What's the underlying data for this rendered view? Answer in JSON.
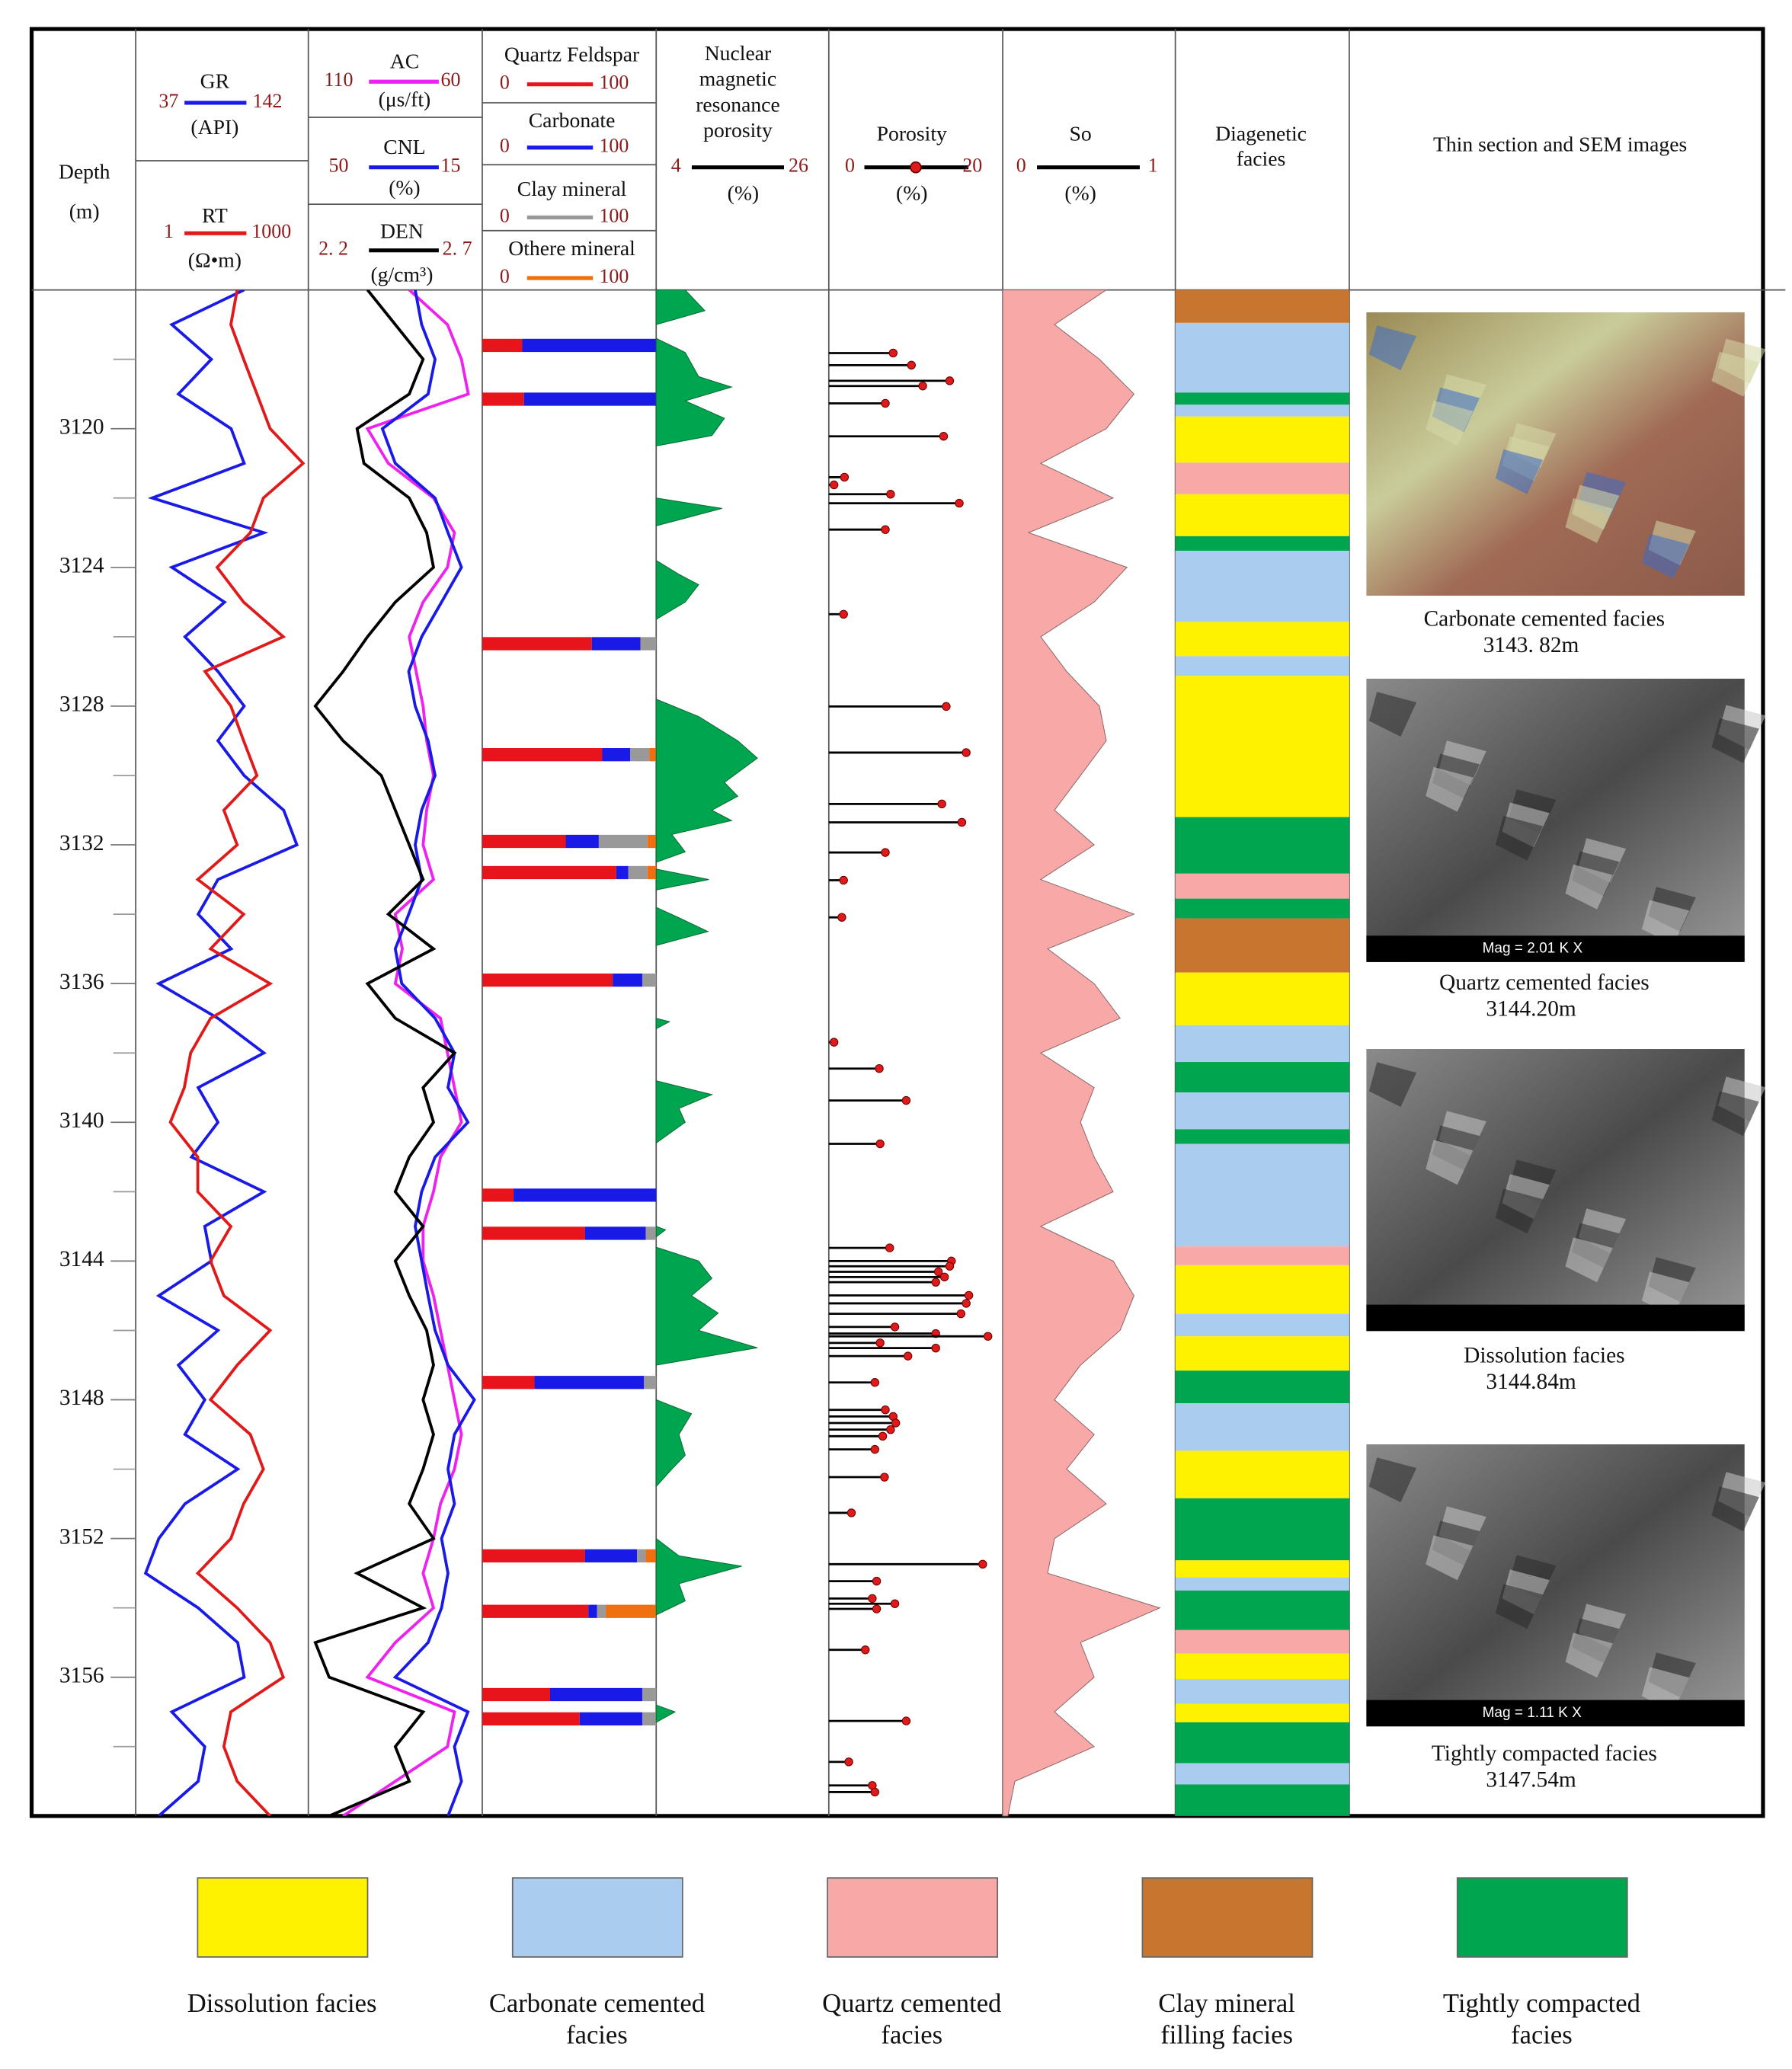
{
  "depth_track": {
    "title": "Depth",
    "unit": "(m)",
    "ylim": [
      3116,
      3160
    ],
    "yticks": [
      3120,
      3124,
      3128,
      3132,
      3136,
      3140,
      3144,
      3148,
      3152,
      3156
    ],
    "minor_yticks": [
      3118,
      3122,
      3126,
      3130,
      3134,
      3138,
      3142,
      3146,
      3150,
      3154,
      3158
    ]
  },
  "curve_depths": [
    3116,
    3117,
    3118,
    3119,
    3120,
    3121,
    3122,
    3123,
    3124,
    3125,
    3126,
    3127,
    3128,
    3129,
    3130,
    3131,
    3132,
    3133,
    3134,
    3135,
    3136,
    3137,
    3138,
    3139,
    3140,
    3141,
    3142,
    3143,
    3144,
    3145,
    3146,
    3147,
    3148,
    3149,
    3150,
    3151,
    3152,
    3153,
    3154,
    3155,
    3156,
    3157,
    3158,
    3159,
    3160
  ],
  "tracks": [
    {
      "curves": [
        {
          "name": "GR",
          "unit": "(API)",
          "color": "#1a1ae6",
          "lim": [
            37,
            142
          ],
          "values": [
            103,
            59,
            83,
            63,
            95,
            103,
            47,
            115,
            59,
            91,
            67,
            87,
            103,
            87,
            103,
            127,
            135,
            87,
            75,
            95,
            51,
            87,
            115,
            75,
            87,
            71,
            115,
            79,
            83,
            51,
            87,
            63,
            79,
            67,
            99,
            67,
            51,
            43,
            75,
            99,
            103,
            59,
            79,
            75,
            51
          ]
        },
        {
          "name": "RT",
          "unit": "(Ω•m)",
          "color": "#e01a1a",
          "lim": [
            1,
            1000
          ],
          "log": true,
          "values": [
            58,
            45,
            75,
            128,
            217,
            809,
            166,
            98,
            26,
            75,
            367,
            16,
            45,
            75,
            128,
            34,
            58,
            12,
            75,
            20,
            217,
            20,
            9,
            7,
            4,
            12,
            12,
            45,
            20,
            34,
            217,
            58,
            20,
            98,
            166,
            75,
            45,
            12,
            58,
            217,
            367,
            45,
            34,
            58,
            217
          ]
        }
      ]
    },
    {
      "curves": [
        {
          "name": "AC",
          "unit": "(μs/ft)",
          "color": "#ee22ee",
          "lim": [
            110,
            60
          ],
          "values": [
            81,
            70,
            66,
            64,
            93,
            87,
            74,
            68,
            70,
            77,
            81,
            79,
            77,
            76,
            74,
            76,
            77,
            74,
            85,
            83,
            85,
            72,
            70,
            68,
            66,
            72,
            74,
            77,
            77,
            74,
            72,
            70,
            68,
            66,
            68,
            72,
            74,
            77,
            74,
            85,
            93,
            68,
            70,
            85,
            100
          ]
        },
        {
          "name": "CNL",
          "unit": "(%)",
          "color": "#1a1ae6",
          "lim": [
            50,
            15
          ],
          "values": [
            28.5,
            27.2,
            24.5,
            25.9,
            35.1,
            32.5,
            24.5,
            21.9,
            19.2,
            23.2,
            27.2,
            29.8,
            28.5,
            25.9,
            24.5,
            27.2,
            28.5,
            27.2,
            29.8,
            32.5,
            31.2,
            24.5,
            20.6,
            21.9,
            17.9,
            24.5,
            27.2,
            28.5,
            27.2,
            25.9,
            24.5,
            21.9,
            16.6,
            20.6,
            21.9,
            20.6,
            23.2,
            21.9,
            23.2,
            25.9,
            32.5,
            17.9,
            20.6,
            19.2,
            21.9
          ]
        },
        {
          "name": "DEN",
          "unit": "(g/cm³)",
          "color": "#000000",
          "lim": [
            {
              "value": 2.2,
              "label": "2. 2"
            },
            {
              "value": 2.7,
              "label": "2. 7"
            }
          ],
          "values": [
            2.37,
            2.45,
            2.53,
            2.49,
            2.34,
            2.36,
            2.49,
            2.54,
            2.56,
            2.45,
            2.37,
            2.3,
            2.22,
            2.3,
            2.41,
            2.45,
            2.49,
            2.53,
            2.43,
            2.56,
            2.37,
            2.45,
            2.62,
            2.53,
            2.56,
            2.49,
            2.45,
            2.53,
            2.45,
            2.49,
            2.54,
            2.56,
            2.53,
            2.56,
            2.53,
            2.49,
            2.56,
            2.34,
            2.53,
            2.22,
            2.26,
            2.53,
            2.45,
            2.49,
            2.26
          ]
        }
      ]
    }
  ],
  "minerals": {
    "components": [
      {
        "name": "Quartz Feldspar",
        "color": "#e8141b",
        "lim": [
          0,
          100
        ]
      },
      {
        "name": "Carbonate",
        "color": "#1a1ae6",
        "lim": [
          0,
          100
        ]
      },
      {
        "name": "Clay mineral",
        "color": "#999999",
        "lim": [
          0,
          100
        ]
      },
      {
        "name": "Othere mineral",
        "color": "#f07010",
        "lim": [
          0,
          100
        ]
      }
    ],
    "bars": [
      {
        "depth": 3117.6,
        "values": [
          23,
          77,
          0,
          0
        ]
      },
      {
        "depth": 3119.15,
        "values": [
          24,
          76,
          0,
          0
        ]
      },
      {
        "depth": 3126.2,
        "values": [
          63,
          28,
          9,
          0
        ]
      },
      {
        "depth": 3129.4,
        "values": [
          69,
          16,
          11,
          4
        ]
      },
      {
        "depth": 3131.9,
        "values": [
          48,
          19,
          28,
          5
        ]
      },
      {
        "depth": 3132.8,
        "values": [
          77,
          7,
          11,
          5
        ]
      },
      {
        "depth": 3135.9,
        "values": [
          75,
          17,
          8,
          0
        ]
      },
      {
        "depth": 3142.1,
        "values": [
          18,
          82,
          0,
          0
        ]
      },
      {
        "depth": 3143.2,
        "values": [
          59,
          35,
          6,
          0
        ]
      },
      {
        "depth": 3147.5,
        "values": [
          30,
          63,
          7,
          0
        ]
      },
      {
        "depth": 3152.5,
        "values": [
          59,
          30,
          5,
          6
        ]
      },
      {
        "depth": 3154.1,
        "values": [
          61,
          5,
          5,
          29
        ]
      },
      {
        "depth": 3156.5,
        "values": [
          39,
          53,
          8,
          0
        ]
      },
      {
        "depth": 3157.2,
        "values": [
          56,
          36,
          8,
          0
        ]
      }
    ]
  },
  "nmr": {
    "title": [
      "Nuclear",
      "magnetic",
      "resonance",
      "porosity"
    ],
    "unit": "(%)",
    "lim": [
      4,
      26
    ],
    "color": "#00a54f",
    "depths": [
      3116.0,
      3116.6,
      3117.0,
      null,
      3117.4,
      3117.8,
      3118.5,
      3118.8,
      3119.2,
      3119.7,
      3120.2,
      3120.5,
      null,
      3122.0,
      3122.3,
      3122.8,
      null,
      3123.8,
      3124.2,
      3124.5,
      3125.0,
      3125.5,
      null,
      3127.8,
      3128.3,
      3129.0,
      3129.5,
      3130.2,
      3130.6,
      3131.0,
      3131.3,
      3131.7,
      3132.2,
      3132.5,
      null,
      3132.7,
      3133.0,
      3133.3,
      null,
      3133.8,
      3134.1,
      3134.5,
      3134.9,
      null,
      3137.0,
      3137.1,
      3137.3,
      null,
      3138.8,
      3139.2,
      3139.6,
      3140.0,
      3140.6,
      null,
      3143.0,
      3143.1,
      3143.3,
      null,
      3143.6,
      3144.0,
      3144.5,
      3145.0,
      3145.5,
      3146.0,
      3146.5,
      3147.0,
      null,
      3148.0,
      3148.4,
      3149.0,
      3149.6,
      3150.0,
      3150.5,
      null,
      3152.0,
      3152.5,
      3152.8,
      3153.3,
      3153.8,
      3154.2,
      null,
      3156.8,
      3157.0,
      3157.3
    ],
    "values": [
      7.7,
      10.2,
      4,
      null,
      4,
      7.7,
      9.4,
      13.6,
      7.7,
      12.7,
      11.1,
      4,
      null,
      4,
      12.4,
      4,
      null,
      4,
      6.9,
      9.4,
      7.7,
      4,
      null,
      4,
      9.4,
      14.4,
      16.9,
      12.7,
      14.4,
      11.1,
      13.6,
      6,
      7.7,
      4,
      null,
      4,
      10.7,
      4,
      null,
      4,
      6.9,
      10.6,
      4,
      null,
      4,
      5.7,
      4,
      null,
      4,
      11.1,
      6.9,
      7.7,
      4,
      null,
      4,
      5.2,
      4,
      null,
      4,
      9.4,
      11.1,
      8.5,
      11.9,
      9.4,
      16.9,
      4,
      null,
      4,
      8.5,
      6.9,
      7.7,
      6,
      4,
      null,
      4,
      6.9,
      14.9,
      6.9,
      7.7,
      4,
      null,
      4,
      6.4,
      4
    ]
  },
  "porosity": {
    "title": "Porosity",
    "unit": "(%)",
    "lim": [
      0,
      20
    ],
    "color": "#e01a1a",
    "depths": [
      3117.82,
      3118.17,
      3118.62,
      3118.77,
      3119.27,
      3120.22,
      3121.4,
      3121.62,
      3121.89,
      3122.15,
      3122.91,
      3125.35,
      3128.01,
      3129.34,
      3130.82,
      3131.35,
      3132.22,
      3133.02,
      3134.09,
      3137.69,
      3138.45,
      3139.37,
      3140.62,
      3143.62,
      3144.0,
      3144.15,
      3144.31,
      3144.46,
      3144.61,
      3144.99,
      3145.22,
      3145.52,
      3145.9,
      3146.09,
      3146.17,
      3146.36,
      3146.51,
      3146.74,
      3147.5,
      3148.29,
      3148.48,
      3148.67,
      3148.86,
      3149.05,
      3149.43,
      3150.23,
      3151.26,
      3152.74,
      3153.23,
      3153.73,
      3153.88,
      3154.03,
      3155.21,
      3157.26,
      3158.44,
      3159.12,
      3159.31
    ],
    "values": [
      7.4,
      9.5,
      13.9,
      10.8,
      6.5,
      13.2,
      1.8,
      0.6,
      7.1,
      15.0,
      6.5,
      1.7,
      13.5,
      15.8,
      13.0,
      15.3,
      6.5,
      1.7,
      1.5,
      0.6,
      5.8,
      8.9,
      5.9,
      7.0,
      14.1,
      13.9,
      12.6,
      13.3,
      12.3,
      16.1,
      15.8,
      15.2,
      7.6,
      12.3,
      18.3,
      5.9,
      12.3,
      9.1,
      5.3,
      6.5,
      7.4,
      7.7,
      7.1,
      6.2,
      5.3,
      6.4,
      2.6,
      17.7,
      5.5,
      5.0,
      7.6,
      5.5,
      4.2,
      8.9,
      2.3,
      5.0,
      5.3
    ]
  },
  "so": {
    "title": "So",
    "unit": "(%)",
    "lim": [
      0,
      1
    ],
    "color": "#f9a8a8",
    "values": [
      0.6,
      0.3,
      0.56,
      0.76,
      0.6,
      0.22,
      0.64,
      0.15,
      0.72,
      0.53,
      0.22,
      0.37,
      0.56,
      0.6,
      0.45,
      0.3,
      0.53,
      0.22,
      0.76,
      0.26,
      0.53,
      0.68,
      0.22,
      0.53,
      0.45,
      0.53,
      0.64,
      0.22,
      0.64,
      0.76,
      0.68,
      0.45,
      0.3,
      0.53,
      0.37,
      0.6,
      0.3,
      0.26,
      0.91,
      0.45,
      0.53,
      0.3,
      0.53,
      0.07,
      0.03
    ]
  },
  "facies_column": {
    "title": [
      "Diagenetic",
      "facies"
    ],
    "intervals": [
      [
        3116,
        3116.95,
        3
      ],
      [
        3116.95,
        3118.96,
        1
      ],
      [
        3118.96,
        3119.31,
        4
      ],
      [
        3119.31,
        3119.65,
        1
      ],
      [
        3119.65,
        3120.98,
        0
      ],
      [
        3120.98,
        3121.89,
        2
      ],
      [
        3121.89,
        3123.1,
        0
      ],
      [
        3123.1,
        3123.52,
        4
      ],
      [
        3123.52,
        3125.57,
        1
      ],
      [
        3125.57,
        3126.56,
        0
      ],
      [
        3126.56,
        3127.13,
        1
      ],
      [
        3127.13,
        3131.2,
        0
      ],
      [
        3131.2,
        3132.83,
        4
      ],
      [
        3132.83,
        3133.55,
        2
      ],
      [
        3133.55,
        3134.12,
        4
      ],
      [
        3134.12,
        3135.68,
        3
      ],
      [
        3135.68,
        3137.2,
        0
      ],
      [
        3137.2,
        3138.26,
        1
      ],
      [
        3138.26,
        3139.14,
        4
      ],
      [
        3139.14,
        3140.2,
        1
      ],
      [
        3140.2,
        3140.62,
        4
      ],
      [
        3140.62,
        3143.58,
        1
      ],
      [
        3143.58,
        3144.12,
        2
      ],
      [
        3144.12,
        3145.52,
        0
      ],
      [
        3145.52,
        3146.17,
        1
      ],
      [
        3146.17,
        3147.16,
        0
      ],
      [
        3147.16,
        3148.1,
        4
      ],
      [
        3148.1,
        3149.47,
        1
      ],
      [
        3149.47,
        3150.84,
        0
      ],
      [
        3150.84,
        3152.63,
        4
      ],
      [
        3152.63,
        3153.12,
        0
      ],
      [
        3153.12,
        3153.5,
        1
      ],
      [
        3153.5,
        3154.64,
        4
      ],
      [
        3154.64,
        3155.32,
        2
      ],
      [
        3155.32,
        3156.05,
        0
      ],
      [
        3156.05,
        3156.77,
        1
      ],
      [
        3156.77,
        3157.3,
        0
      ],
      [
        3157.3,
        3158.48,
        4
      ],
      [
        3158.48,
        3159.09,
        1
      ],
      [
        3159.09,
        3160,
        4
      ]
    ]
  },
  "images": {
    "title": "Thin section and SEM images",
    "items": [
      {
        "caption": "Carbonate cemented facies",
        "depth": "3143. 82m"
      },
      {
        "caption": "Quartz cemented facies",
        "depth": "3144.20m",
        "mag": "Mag = 2.01 K X"
      },
      {
        "caption": "Dissolution facies",
        "depth": "3144.84m"
      },
      {
        "caption": "Tightly compacted facies",
        "depth": "3147.54m",
        "mag": "Mag = 1.11 K X"
      }
    ]
  },
  "legend": [
    {
      "label": [
        "Dissolution facies"
      ],
      "color": "#fff200"
    },
    {
      "label": [
        "Carbonate cemented",
        "facies"
      ],
      "color": "#aacdef"
    },
    {
      "label": [
        "Quartz cemented",
        "facies"
      ],
      "color": "#f9a8a8"
    },
    {
      "label": [
        "Clay mineral",
        "filling facies"
      ],
      "color": "#c87530"
    },
    {
      "label": [
        "Tightly compacted",
        "facies"
      ],
      "color": "#00a54f"
    }
  ]
}
